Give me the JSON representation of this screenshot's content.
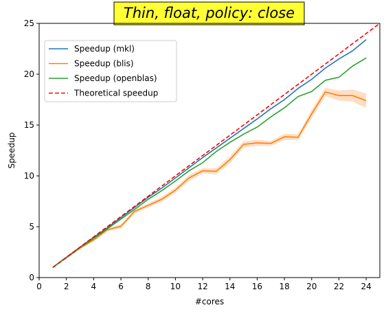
{
  "chart_data": {
    "type": "line",
    "title": "Thin, float, policy: close",
    "title_box_color": "#ffff33",
    "xlabel": "#cores",
    "ylabel": "Speedup",
    "xlim": [
      0,
      25
    ],
    "ylim": [
      0,
      25
    ],
    "xticks": [
      0,
      2,
      4,
      6,
      8,
      10,
      12,
      14,
      16,
      18,
      20,
      22,
      24
    ],
    "yticks": [
      0,
      5,
      10,
      15,
      20,
      25
    ],
    "grid": false,
    "legend_position": "upper-left",
    "x": [
      1,
      2,
      3,
      4,
      5,
      6,
      7,
      8,
      9,
      10,
      11,
      12,
      13,
      14,
      15,
      16,
      17,
      18,
      19,
      20,
      21,
      22,
      23,
      24
    ],
    "series": [
      {
        "name": "Speedup (mkl)",
        "color": "#1f77b4",
        "style": "solid",
        "values": [
          1.0,
          2.0,
          3.0,
          3.95,
          4.9,
          5.9,
          6.9,
          7.9,
          8.8,
          9.8,
          10.8,
          11.8,
          12.75,
          13.7,
          14.65,
          15.6,
          16.6,
          17.5,
          18.6,
          19.5,
          20.6,
          21.5,
          22.3,
          23.4
        ],
        "band": [
          0.05,
          0.05,
          0.05,
          0.05,
          0.05,
          0.05,
          0.05,
          0.05,
          0.05,
          0.05,
          0.05,
          0.05,
          0.05,
          0.05,
          0.05,
          0.05,
          0.05,
          0.05,
          0.05,
          0.05,
          0.05,
          0.05,
          0.05,
          0.05
        ]
      },
      {
        "name": "Speedup (blis)",
        "color": "#ff7f0e",
        "style": "solid",
        "values": [
          1.0,
          1.95,
          2.9,
          3.7,
          4.7,
          5.05,
          6.5,
          7.1,
          7.7,
          8.6,
          9.8,
          10.5,
          10.45,
          11.6,
          13.1,
          13.25,
          13.2,
          13.85,
          13.8,
          16.1,
          18.25,
          17.9,
          17.9,
          17.4
        ],
        "band": [
          0.05,
          0.1,
          0.1,
          0.15,
          0.15,
          0.2,
          0.2,
          0.2,
          0.25,
          0.25,
          0.3,
          0.25,
          0.3,
          0.35,
          0.3,
          0.3,
          0.25,
          0.3,
          0.3,
          0.4,
          0.4,
          0.5,
          0.6,
          0.7
        ]
      },
      {
        "name": "Speedup (openblas)",
        "color": "#2ca02c",
        "style": "solid",
        "values": [
          1.0,
          1.95,
          2.95,
          3.85,
          4.8,
          5.75,
          6.7,
          7.7,
          8.55,
          9.5,
          10.5,
          11.3,
          12.4,
          13.3,
          14.1,
          14.8,
          15.8,
          16.7,
          17.8,
          18.3,
          19.4,
          19.7,
          20.8,
          21.6
        ],
        "band": [
          0.05,
          0.05,
          0.05,
          0.05,
          0.05,
          0.05,
          0.05,
          0.05,
          0.05,
          0.05,
          0.05,
          0.05,
          0.05,
          0.05,
          0.05,
          0.05,
          0.05,
          0.05,
          0.05,
          0.05,
          0.05,
          0.05,
          0.05,
          0.05
        ]
      },
      {
        "name": "Theoretical speedup",
        "color": "#ff0000",
        "style": "dashed",
        "x": [
          1,
          25
        ],
        "values": [
          1,
          25
        ]
      }
    ]
  }
}
